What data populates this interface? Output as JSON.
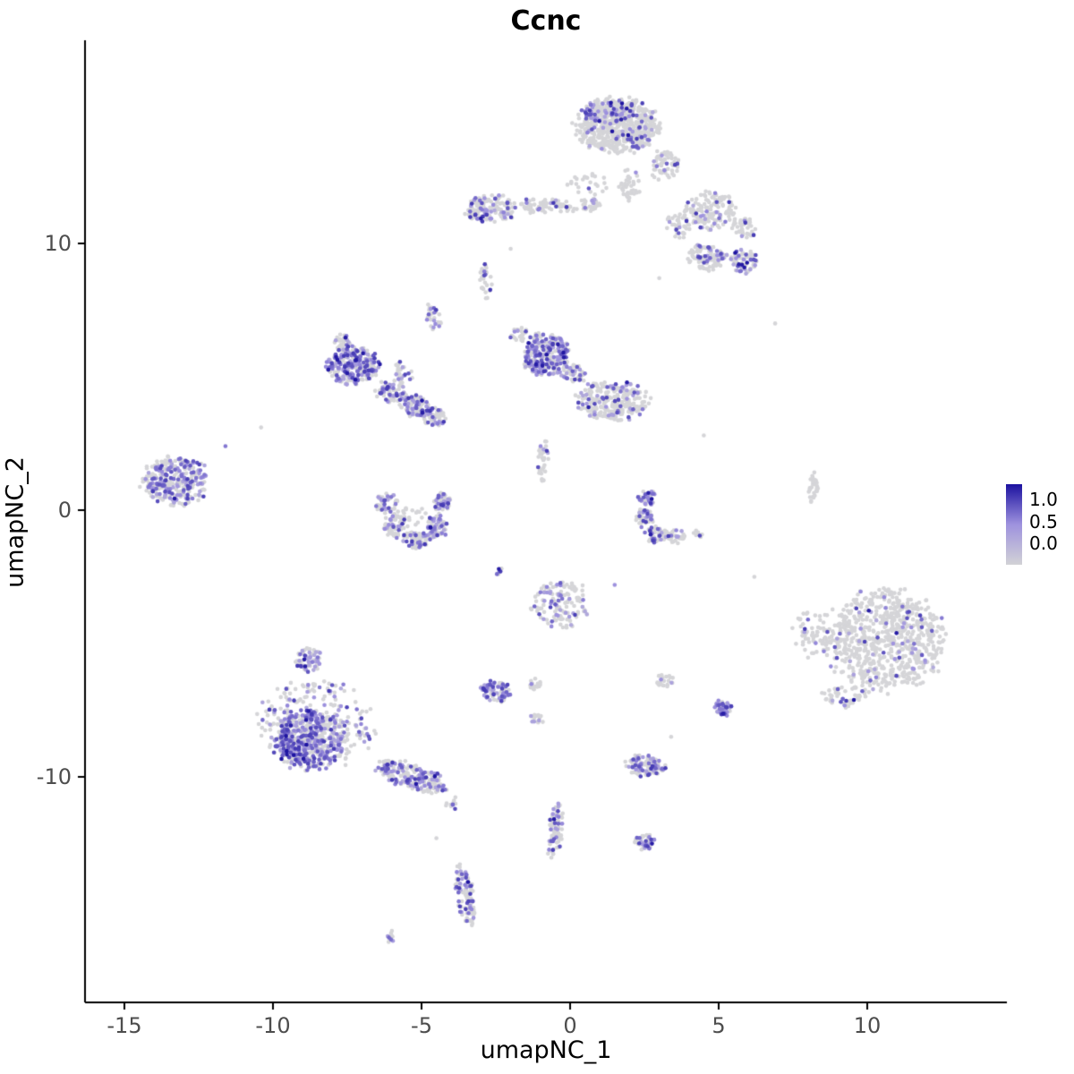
{
  "title": "Ccnc",
  "axes": {
    "x": {
      "label": "umapNC_1",
      "ticks": [
        -15,
        -10,
        -5,
        0,
        5,
        10
      ],
      "range": [
        -16.3,
        14.7
      ]
    },
    "y": {
      "label": "umapNC_2",
      "ticks": [
        -10,
        0,
        10
      ],
      "range": [
        -18.0,
        17.6
      ]
    }
  },
  "colors": {
    "background": "#ffffff",
    "axis_line": "#000000",
    "tick_label": "#4d4d4d",
    "point_gray": "#d5d5d8"
  },
  "chart_data": {
    "type": "scatter",
    "title": "Ccnc",
    "xlabel": "umapNC_1",
    "ylabel": "umapNC_2",
    "xlim": [
      -16.3,
      14.7
    ],
    "ylim": [
      -18.0,
      17.6
    ],
    "grid": false,
    "legend_position": "right",
    "colorbar": {
      "ticks": [
        "1.0",
        "0.5",
        "0.0"
      ],
      "low": "#d2d2d6",
      "mid": "#9e92de",
      "high": "#1c12a0",
      "meaning": "Ccnc expression level per cell, 0 = grey, 1 = dark blue"
    },
    "cluster_fields": [
      "cx",
      "cy",
      "rx",
      "ry",
      "rot_deg",
      "n",
      "expressed_frac"
    ],
    "clusters": [
      [
        1.6,
        14.4,
        1.35,
        1.0,
        0,
        620,
        0.1
      ],
      [
        1.2,
        14.9,
        0.7,
        0.45,
        0,
        70,
        0.45
      ],
      [
        3.2,
        12.9,
        0.45,
        0.6,
        0,
        60,
        0.12
      ],
      [
        2.0,
        12.2,
        0.35,
        0.6,
        0,
        40,
        0.1
      ],
      [
        0.6,
        12.2,
        0.7,
        0.5,
        0,
        25,
        0.08
      ],
      [
        4.7,
        11.2,
        0.85,
        0.7,
        0,
        150,
        0.15
      ],
      [
        5.9,
        10.6,
        0.4,
        0.4,
        0,
        40,
        0.1
      ],
      [
        3.6,
        10.7,
        0.4,
        0.5,
        0,
        40,
        0.1
      ],
      [
        4.6,
        9.5,
        0.6,
        0.5,
        0,
        100,
        0.25
      ],
      [
        5.85,
        9.35,
        0.45,
        0.45,
        0,
        70,
        0.35
      ],
      [
        -2.7,
        11.3,
        0.9,
        0.5,
        0,
        160,
        0.3
      ],
      [
        -0.8,
        11.4,
        1.0,
        0.3,
        0,
        70,
        0.1
      ],
      [
        0.7,
        11.5,
        0.3,
        0.3,
        0,
        30,
        0.15
      ],
      [
        -2.85,
        8.6,
        0.2,
        0.8,
        0,
        30,
        0.25
      ],
      [
        -7.3,
        5.4,
        0.85,
        0.7,
        0,
        290,
        0.5
      ],
      [
        -7.7,
        6.3,
        0.3,
        0.3,
        0,
        30,
        0.3
      ],
      [
        -6.0,
        4.4,
        0.5,
        0.5,
        0,
        80,
        0.35
      ],
      [
        -5.2,
        3.9,
        0.5,
        0.4,
        0,
        80,
        0.4
      ],
      [
        -4.6,
        3.5,
        0.4,
        0.35,
        0,
        60,
        0.45
      ],
      [
        -5.6,
        5.2,
        0.3,
        0.45,
        0,
        25,
        0.2
      ],
      [
        -4.6,
        7.2,
        0.25,
        0.55,
        15,
        30,
        0.35
      ],
      [
        -0.8,
        5.8,
        0.75,
        0.8,
        0,
        290,
        0.55
      ],
      [
        -1.7,
        6.6,
        0.3,
        0.3,
        0,
        25,
        0.3
      ],
      [
        0.1,
        5.1,
        0.4,
        0.4,
        0,
        50,
        0.3
      ],
      [
        1.4,
        4.1,
        1.2,
        0.7,
        0,
        260,
        0.22
      ],
      [
        -0.9,
        1.9,
        0.2,
        0.8,
        0,
        35,
        0.15
      ],
      [
        -13.3,
        1.1,
        1.1,
        0.85,
        0,
        300,
        0.5
      ],
      [
        -6.2,
        0.3,
        0.35,
        0.4,
        0,
        50,
        0.3
      ],
      [
        -5.9,
        -0.6,
        0.35,
        0.45,
        0,
        60,
        0.25
      ],
      [
        -5.2,
        -1.1,
        0.45,
        0.3,
        0,
        70,
        0.3
      ],
      [
        -4.5,
        -0.6,
        0.35,
        0.45,
        0,
        70,
        0.45
      ],
      [
        -4.3,
        0.3,
        0.3,
        0.35,
        0,
        50,
        0.4
      ],
      [
        -5.3,
        -0.2,
        0.5,
        0.4,
        0,
        25,
        0.1
      ],
      [
        2.6,
        0.5,
        0.3,
        0.3,
        0,
        40,
        0.45
      ],
      [
        2.5,
        -0.3,
        0.3,
        0.35,
        0,
        45,
        0.3
      ],
      [
        2.9,
        -0.9,
        0.4,
        0.3,
        0,
        45,
        0.3
      ],
      [
        3.6,
        -1.0,
        0.4,
        0.25,
        0,
        30,
        0.25
      ],
      [
        4.3,
        -0.9,
        0.2,
        0.2,
        0,
        8,
        0.1
      ],
      [
        -0.3,
        -3.5,
        1.0,
        0.9,
        0,
        130,
        0.3
      ],
      [
        -2.4,
        -2.3,
        0.15,
        0.15,
        0,
        8,
        0.3
      ],
      [
        -2.5,
        -6.8,
        0.5,
        0.4,
        0,
        80,
        0.6
      ],
      [
        -1.2,
        -6.6,
        0.2,
        0.25,
        0,
        15,
        0.1
      ],
      [
        -1.1,
        -7.8,
        0.25,
        0.2,
        0,
        15,
        0.1
      ],
      [
        3.2,
        -6.4,
        0.25,
        0.25,
        0,
        20,
        0.15
      ],
      [
        -8.8,
        -8.6,
        1.1,
        1.1,
        0,
        450,
        0.6
      ],
      [
        -8.6,
        -8.0,
        1.9,
        1.6,
        0,
        300,
        0.3
      ],
      [
        -8.8,
        -5.6,
        0.45,
        0.45,
        0,
        60,
        0.45
      ],
      [
        -5.3,
        -10.0,
        1.2,
        0.45,
        -20,
        200,
        0.45
      ],
      [
        -4.0,
        -11.0,
        0.2,
        0.3,
        0,
        12,
        0.3
      ],
      [
        10.6,
        -4.9,
        1.9,
        1.9,
        0,
        750,
        0.08
      ],
      [
        8.2,
        -4.6,
        0.7,
        0.9,
        0,
        60,
        0.1
      ],
      [
        9.3,
        -7.0,
        0.8,
        0.4,
        0,
        50,
        0.1
      ],
      [
        8.2,
        0.8,
        0.15,
        0.7,
        0,
        30,
        0.05
      ],
      [
        5.15,
        -7.4,
        0.3,
        0.3,
        0,
        45,
        0.75
      ],
      [
        2.5,
        -9.6,
        0.65,
        0.4,
        0,
        110,
        0.45
      ],
      [
        -0.5,
        -12.0,
        0.25,
        1.0,
        -8,
        80,
        0.4
      ],
      [
        2.5,
        -12.45,
        0.35,
        0.3,
        0,
        45,
        0.45
      ],
      [
        -3.55,
        -14.4,
        0.3,
        1.1,
        8,
        100,
        0.4
      ],
      [
        -6.05,
        -16.0,
        0.15,
        0.25,
        0,
        12,
        0.3
      ]
    ],
    "singles_fields": [
      "x",
      "y",
      "expression"
    ],
    "singles": [
      [
        -10.4,
        3.1,
        0
      ],
      [
        6.9,
        7.0,
        0
      ],
      [
        4.5,
        2.8,
        0
      ],
      [
        1.5,
        -2.8,
        0.5
      ],
      [
        -4.5,
        -12.3,
        0
      ],
      [
        -11.6,
        2.4,
        0.6
      ],
      [
        3.0,
        8.7,
        0
      ],
      [
        6.2,
        -2.5,
        0
      ],
      [
        3.4,
        -8.5,
        0
      ],
      [
        -2.0,
        9.8,
        0
      ]
    ]
  }
}
